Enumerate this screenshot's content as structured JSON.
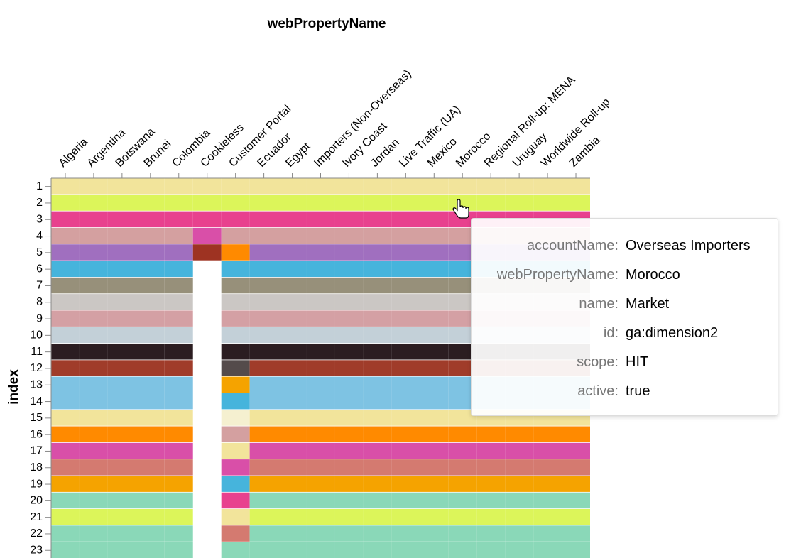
{
  "chart_data": {
    "type": "heatmap",
    "title": "webPropertyName",
    "y_label": "index",
    "columns": [
      "Algeria",
      "Argentina",
      "Botswana",
      "Brunei",
      "Colombia",
      "Cookieless",
      "Customer Portal",
      "Ecuador",
      "Egypt",
      "Importers (Non-Overseas)",
      "Ivory Coast",
      "Jordan",
      "Live Traffic (UA)",
      "Mexico",
      "Morocco",
      "Regional Roll-up: MENA",
      "Uruguay",
      "Worldwide Roll-up",
      "Zambia"
    ],
    "rows": [
      1,
      2,
      3,
      4,
      5,
      6,
      7,
      8,
      9,
      10,
      11,
      12,
      13,
      14,
      15,
      16,
      17,
      18,
      19,
      20,
      21,
      22,
      23
    ],
    "cells": [
      [
        "#f2e49b",
        "#f2e49b",
        "#f2e49b",
        "#f2e49b",
        "#f2e49b",
        "#f2e49b",
        "#f2e49b",
        "#f2e49b",
        "#f2e49b",
        "#f2e49b",
        "#f2e49b",
        "#f2e49b",
        "#f2e49b",
        "#f2e49b",
        "#f2e49b",
        "#f2e49b",
        "#f2e49b",
        "#f2e49b",
        "#f2e49b"
      ],
      [
        "#dcf55a",
        "#dcf55a",
        "#dcf55a",
        "#dcf55a",
        "#dcf55a",
        "#dcf55a",
        "#dcf55a",
        "#dcf55a",
        "#dcf55a",
        "#dcf55a",
        "#dcf55a",
        "#dcf55a",
        "#dcf55a",
        "#dcf55a",
        "#dcf55a",
        "#dcf55a",
        "#dcf55a",
        "#dcf55a",
        "#dcf55a"
      ],
      [
        "#e8418e",
        "#e8418e",
        "#e8418e",
        "#e8418e",
        "#e8418e",
        "#e8418e",
        "#e8418e",
        "#e8418e",
        "#e8418e",
        "#e8418e",
        "#e8418e",
        "#e8418e",
        "#e8418e",
        "#e8418e",
        "#e8418e",
        "#e8418e",
        "#e8418e",
        "#e8418e",
        "#e8418e"
      ],
      [
        "#d4a0a0",
        "#d4a0a0",
        "#d4a0a0",
        "#d4a0a0",
        "#d4a0a0",
        "#d94fa8",
        "#d4a0a0",
        "#d4a0a0",
        "#d4a0a0",
        "#d4a0a0",
        "#d4a0a0",
        "#d4a0a0",
        "#d4a0a0",
        "#d4a0a0",
        "#d4a0a0",
        "#d4a0a0",
        "#d4a0a0",
        "#d4a0a0",
        "#d4a0a0"
      ],
      [
        "#a06fbf",
        "#a06fbf",
        "#a06fbf",
        "#a06fbf",
        "#a06fbf",
        "#9e3322",
        "#ff8a00",
        "#a06fbf",
        "#a06fbf",
        "#a06fbf",
        "#a06fbf",
        "#a06fbf",
        "#a06fbf",
        "#a06fbf",
        "#a06fbf",
        "#a06fbf",
        "#a06fbf",
        "#a06fbf",
        "#a06fbf"
      ],
      [
        "#46b4dc",
        "#46b4dc",
        "#46b4dc",
        "#46b4dc",
        "#46b4dc",
        null,
        "#46b4dc",
        "#46b4dc",
        "#46b4dc",
        "#46b4dc",
        "#46b4dc",
        "#46b4dc",
        "#46b4dc",
        "#46b4dc",
        "#46b4dc",
        "#46b4dc",
        "#46b4dc",
        "#46b4dc",
        "#46b4dc"
      ],
      [
        "#97907a",
        "#97907a",
        "#97907a",
        "#97907a",
        "#97907a",
        null,
        "#97907a",
        "#97907a",
        "#97907a",
        "#97907a",
        "#97907a",
        "#97907a",
        "#97907a",
        "#97907a",
        "#97907a",
        "#97907a",
        "#97907a",
        "#97907a",
        "#97907a"
      ],
      [
        "#cbc7c4",
        "#cbc7c4",
        "#cbc7c4",
        "#cbc7c4",
        "#cbc7c4",
        null,
        "#cbc7c4",
        "#cbc7c4",
        "#cbc7c4",
        "#cbc7c4",
        "#cbc7c4",
        "#cbc7c4",
        "#cbc7c4",
        "#cbc7c4",
        "#cbc7c4",
        "#cbc7c4",
        "#cbc7c4",
        "#cbc7c4",
        "#cbc7c4"
      ],
      [
        "#d4a0a4",
        "#d4a0a4",
        "#d4a0a4",
        "#d4a0a4",
        "#d4a0a4",
        null,
        "#d4a0a4",
        "#d4a0a4",
        "#d4a0a4",
        "#d4a0a4",
        "#d4a0a4",
        "#d4a0a4",
        "#d4a0a4",
        "#d4a0a4",
        "#d4a0a4",
        "#d4a0a4",
        "#d4a0a4",
        "#d4a0a4",
        "#d4a0a4"
      ],
      [
        "#c3d0d8",
        "#c3d0d8",
        "#c3d0d8",
        "#c3d0d8",
        "#c3d0d8",
        null,
        "#c3d0d8",
        "#c3d0d8",
        "#c3d0d8",
        "#c3d0d8",
        "#c3d0d8",
        "#c3d0d8",
        "#c3d0d8",
        "#c3d0d8",
        "#c3d0d8",
        "#c3d0d8",
        "#c3d0d8",
        "#c3d0d8",
        "#c3d0d8"
      ],
      [
        "#2b1d21",
        "#2b1d21",
        "#2b1d21",
        "#2b1d21",
        "#2b1d21",
        null,
        "#2b1d21",
        "#2b1d21",
        "#2b1d21",
        "#2b1d21",
        "#2b1d21",
        "#2b1d21",
        "#2b1d21",
        "#2b1d21",
        "#2b1d21",
        "#2b1d21",
        "#2b1d21",
        "#2b1d21",
        "#2b1d21"
      ],
      [
        "#a03c2a",
        "#a03c2a",
        "#a03c2a",
        "#a03c2a",
        "#a03c2a",
        null,
        "#544b4b",
        "#a03c2a",
        "#a03c2a",
        "#a03c2a",
        "#a03c2a",
        "#a03c2a",
        "#a03c2a",
        "#a03c2a",
        "#a03c2a",
        "#a03c2a",
        "#a03c2a",
        "#a03c2a",
        "#a03c2a"
      ],
      [
        "#7ec3e3",
        "#7ec3e3",
        "#7ec3e3",
        "#7ec3e3",
        "#7ec3e3",
        null,
        "#f5a300",
        "#7ec3e3",
        "#7ec3e3",
        "#7ec3e3",
        "#7ec3e3",
        "#7ec3e3",
        "#7ec3e3",
        "#7ec3e3",
        "#7ec3e3",
        "#7ec3e3",
        "#7ec3e3",
        "#7ec3e3",
        "#7ec3e3"
      ],
      [
        "#7ec3e3",
        "#7ec3e3",
        "#7ec3e3",
        "#7ec3e3",
        "#7ec3e3",
        null,
        "#46b4dc",
        "#7ec3e3",
        "#7ec3e3",
        "#7ec3e3",
        "#7ec3e3",
        "#7ec3e3",
        "#7ec3e3",
        "#7ec3e3",
        "#7ec3e3",
        "#7ec3e3",
        "#7ec3e3",
        "#7ec3e3",
        "#7ec3e3"
      ],
      [
        "#f2e49b",
        "#f2e49b",
        "#f2e49b",
        "#f2e49b",
        "#f2e49b",
        null,
        "#f5f0d0",
        "#f2e49b",
        "#f2e49b",
        "#f2e49b",
        "#f2e49b",
        "#f2e49b",
        "#f2e49b",
        "#f2e49b",
        "#f2e49b",
        "#f2e49b",
        "#f2e49b",
        "#f2e49b",
        "#f2e49b"
      ],
      [
        "#ff8a00",
        "#ff8a00",
        "#ff8a00",
        "#ff8a00",
        "#ff8a00",
        null,
        "#d4a0a0",
        "#ff8a00",
        "#ff8a00",
        "#ff8a00",
        "#ff8a00",
        "#ff8a00",
        "#ff8a00",
        "#ff8a00",
        "#ff8a00",
        "#ff8a00",
        "#ff8a00",
        "#ff8a00",
        "#ff8a00"
      ],
      [
        "#d94fa8",
        "#d94fa8",
        "#d94fa8",
        "#d94fa8",
        "#d94fa8",
        null,
        "#f2e49b",
        "#d94fa8",
        "#d94fa8",
        "#d94fa8",
        "#d94fa8",
        "#d94fa8",
        "#d94fa8",
        "#d94fa8",
        "#d94fa8",
        "#d94fa8",
        "#d94fa8",
        "#d94fa8",
        "#d94fa8"
      ],
      [
        "#d47a70",
        "#d47a70",
        "#d47a70",
        "#d47a70",
        "#d47a70",
        null,
        "#d94fa8",
        "#d47a70",
        "#d47a70",
        "#d47a70",
        "#d47a70",
        "#d47a70",
        "#d47a70",
        "#d47a70",
        "#d47a70",
        "#d47a70",
        "#d47a70",
        "#d47a70",
        "#d47a70"
      ],
      [
        "#f5a300",
        "#f5a300",
        "#f5a300",
        "#f5a300",
        "#f5a300",
        null,
        "#46b4dc",
        "#f5a300",
        "#f5a300",
        "#f5a300",
        "#f5a300",
        "#f5a300",
        "#f5a300",
        "#f5a300",
        "#f5a300",
        "#f5a300",
        "#f5a300",
        "#f5a300",
        "#f5a300"
      ],
      [
        "#8ad8b8",
        "#8ad8b8",
        "#8ad8b8",
        "#8ad8b8",
        "#8ad8b8",
        null,
        "#e8418e",
        "#8ad8b8",
        "#8ad8b8",
        "#8ad8b8",
        "#8ad8b8",
        "#8ad8b8",
        "#8ad8b8",
        "#8ad8b8",
        "#8ad8b8",
        "#8ad8b8",
        "#8ad8b8",
        "#8ad8b8",
        "#8ad8b8"
      ],
      [
        "#dcf55a",
        "#dcf55a",
        "#dcf55a",
        "#dcf55a",
        "#dcf55a",
        null,
        "#f2e49b",
        "#dcf55a",
        "#dcf55a",
        "#dcf55a",
        "#dcf55a",
        "#dcf55a",
        "#dcf55a",
        "#dcf55a",
        "#dcf55a",
        "#dcf55a",
        "#dcf55a",
        "#dcf55a",
        "#dcf55a"
      ],
      [
        "#8ad8b8",
        "#8ad8b8",
        "#8ad8b8",
        "#8ad8b8",
        "#8ad8b8",
        null,
        "#d47a70",
        "#8ad8b8",
        "#8ad8b8",
        "#8ad8b8",
        "#8ad8b8",
        "#8ad8b8",
        "#8ad8b8",
        "#8ad8b8",
        "#8ad8b8",
        "#8ad8b8",
        "#8ad8b8",
        "#8ad8b8",
        "#8ad8b8"
      ],
      [
        "#8ad8b8",
        "#8ad8b8",
        "#8ad8b8",
        "#8ad8b8",
        "#8ad8b8",
        null,
        "#8ad8b8",
        "#8ad8b8",
        "#8ad8b8",
        "#8ad8b8",
        "#8ad8b8",
        "#8ad8b8",
        "#8ad8b8",
        "#8ad8b8",
        "#8ad8b8",
        "#8ad8b8",
        "#8ad8b8",
        "#8ad8b8",
        "#8ad8b8"
      ]
    ]
  },
  "tooltip": {
    "rows": [
      {
        "key": "accountName:",
        "value": "Overseas Importers"
      },
      {
        "key": "webPropertyName:",
        "value": "Morocco"
      },
      {
        "key": "name:",
        "value": "Market"
      },
      {
        "key": "id:",
        "value": "ga:dimension2"
      },
      {
        "key": "scope:",
        "value": "HIT"
      },
      {
        "key": "active:",
        "value": "true"
      }
    ]
  }
}
